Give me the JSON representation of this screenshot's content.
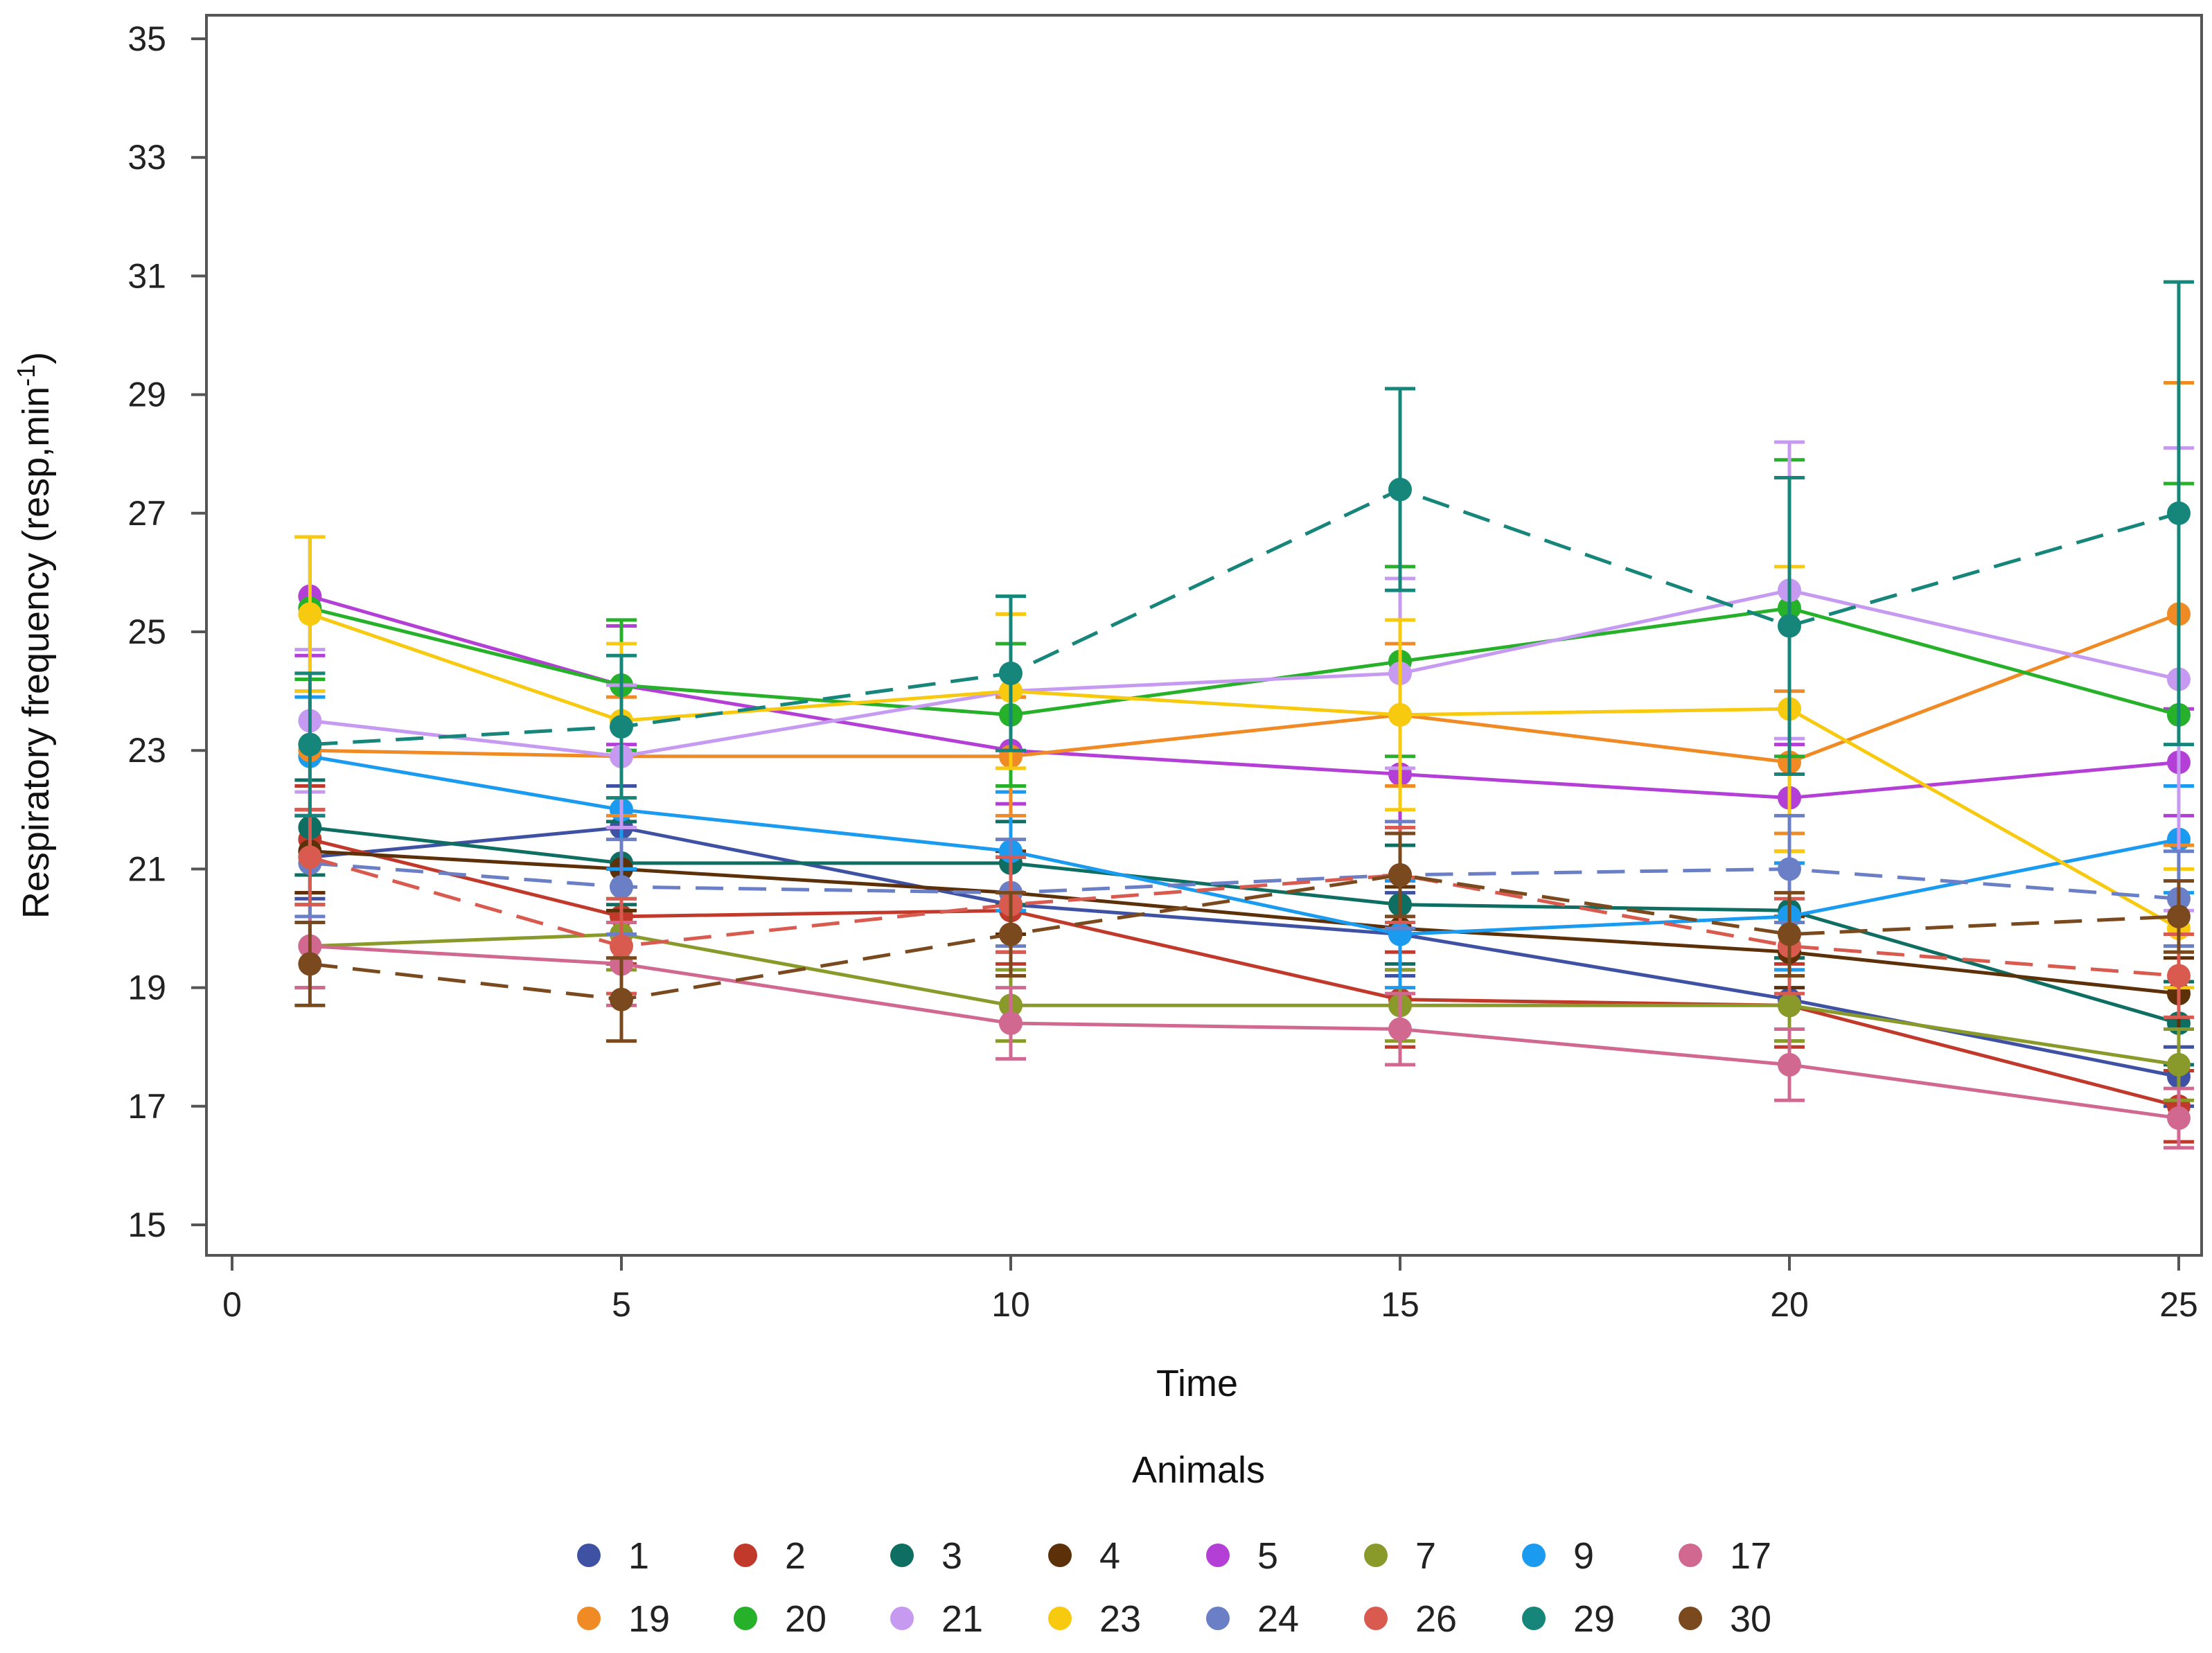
{
  "chart_data": {
    "type": "line",
    "xlabel": "Time",
    "ylabel": "Respiratory frequency (resp,min",
    "ylabel_sup": "-1",
    "ylabel_close": ")",
    "xlim": [
      0,
      25
    ],
    "ylim": [
      15,
      35
    ],
    "x_ticks": [
      "0",
      "5",
      "10",
      "15",
      "20",
      "25"
    ],
    "y_ticks": [
      "15",
      "17",
      "19",
      "21",
      "23",
      "25",
      "27",
      "29",
      "31",
      "33",
      "35"
    ],
    "x": [
      1,
      5,
      10,
      15,
      20,
      25
    ],
    "grid": false,
    "legend_title": "Animals",
    "legend_position": "bottom",
    "series": [
      {
        "name": "1",
        "color": "#3f51a3",
        "dashed": false,
        "values": [
          21.2,
          21.7,
          20.4,
          19.9,
          18.8,
          17.5
        ],
        "err": [
          0.7,
          0.7,
          0.8,
          0.7,
          0.7,
          0.5
        ]
      },
      {
        "name": "2",
        "color": "#c0392b",
        "dashed": false,
        "values": [
          21.5,
          20.2,
          20.3,
          18.8,
          18.7,
          17.0
        ],
        "err": [
          0.9,
          0.8,
          0.9,
          0.8,
          0.7,
          0.6
        ]
      },
      {
        "name": "3",
        "color": "#0e6e62",
        "dashed": false,
        "values": [
          21.7,
          21.1,
          21.1,
          20.4,
          20.3,
          18.4
        ],
        "err": [
          0.8,
          0.7,
          0.7,
          1.0,
          0.8,
          0.7
        ]
      },
      {
        "name": "4",
        "color": "#5c3008",
        "dashed": false,
        "values": [
          21.3,
          21.0,
          20.6,
          20.0,
          19.6,
          18.9
        ],
        "err": [
          0.7,
          0.7,
          0.7,
          0.7,
          0.6,
          0.6
        ]
      },
      {
        "name": "5",
        "color": "#b43fd6",
        "dashed": false,
        "values": [
          25.6,
          24.1,
          23.0,
          22.6,
          22.2,
          22.8
        ],
        "err": [
          1.0,
          1.0,
          0.9,
          1.0,
          0.9,
          0.9
        ]
      },
      {
        "name": "7",
        "color": "#8a9a2a",
        "dashed": false,
        "values": [
          19.7,
          19.9,
          18.7,
          18.7,
          18.7,
          17.7
        ],
        "err": [
          0.7,
          0.6,
          0.6,
          0.6,
          0.6,
          0.6
        ]
      },
      {
        "name": "9",
        "color": "#1a9bf0",
        "dashed": false,
        "values": [
          22.9,
          22.0,
          21.3,
          19.9,
          20.2,
          21.5
        ],
        "err": [
          1.0,
          1.0,
          1.0,
          0.9,
          0.9,
          0.9
        ]
      },
      {
        "name": "17",
        "color": "#d0688f",
        "dashed": false,
        "values": [
          19.7,
          19.4,
          18.4,
          18.3,
          17.7,
          16.8
        ],
        "err": [
          0.7,
          0.7,
          0.6,
          0.6,
          0.6,
          0.5
        ]
      },
      {
        "name": "19",
        "color": "#f08a24",
        "dashed": false,
        "values": [
          23.0,
          22.9,
          22.9,
          23.6,
          22.8,
          25.3
        ],
        "err": [
          1.0,
          1.0,
          1.0,
          1.2,
          1.2,
          3.9
        ]
      },
      {
        "name": "20",
        "color": "#27b02a",
        "dashed": false,
        "values": [
          25.4,
          24.1,
          23.6,
          24.5,
          25.4,
          23.6
        ],
        "err": [
          1.2,
          1.1,
          1.2,
          1.6,
          2.5,
          3.9
        ]
      },
      {
        "name": "21",
        "color": "#c79af2",
        "dashed": false,
        "values": [
          23.5,
          22.9,
          24.0,
          24.3,
          25.7,
          24.2
        ],
        "err": [
          1.2,
          1.2,
          1.3,
          1.6,
          2.5,
          3.9
        ]
      },
      {
        "name": "23",
        "color": "#f7c90f",
        "dashed": false,
        "values": [
          25.3,
          23.5,
          24.0,
          23.6,
          23.7,
          20.0
        ],
        "err": [
          1.3,
          1.3,
          1.3,
          1.6,
          2.4,
          1.0
        ]
      },
      {
        "name": "24",
        "color": "#6a7fc6",
        "dashed": true,
        "values": [
          21.1,
          20.7,
          20.6,
          20.9,
          21.0,
          20.5
        ],
        "err": [
          0.9,
          0.8,
          0.9,
          0.9,
          0.9,
          0.8
        ]
      },
      {
        "name": "26",
        "color": "#d95a4f",
        "dashed": true,
        "values": [
          21.2,
          19.7,
          20.4,
          20.9,
          19.7,
          19.2
        ],
        "err": [
          0.8,
          0.8,
          0.8,
          0.8,
          0.8,
          0.7
        ]
      },
      {
        "name": "29",
        "color": "#16857a",
        "dashed": true,
        "values": [
          23.1,
          23.4,
          24.3,
          27.4,
          25.1,
          27.0
        ],
        "err": [
          1.2,
          1.2,
          1.3,
          1.7,
          2.5,
          3.9
        ]
      },
      {
        "name": "30",
        "color": "#7a4a1e",
        "dashed": true,
        "values": [
          19.4,
          18.8,
          19.9,
          20.9,
          19.9,
          20.2
        ],
        "err": [
          0.7,
          0.7,
          0.7,
          0.7,
          0.7,
          0.6
        ]
      }
    ]
  }
}
